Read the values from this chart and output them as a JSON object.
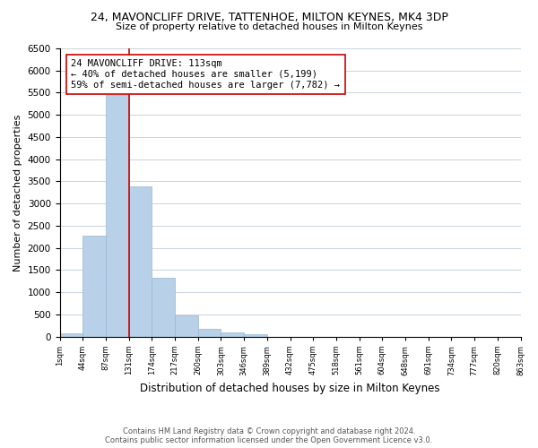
{
  "title_line1": "24, MAVONCLIFF DRIVE, TATTENHOE, MILTON KEYNES, MK4 3DP",
  "title_line2": "Size of property relative to detached houses in Milton Keynes",
  "xlabel": "Distribution of detached houses by size in Milton Keynes",
  "ylabel": "Number of detached properties",
  "bar_color": "#b8d0e8",
  "bar_edge_color": "#9ab8d0",
  "annotation_line_color": "#cc0000",
  "annotation_box_edge_color": "#cc0000",
  "bin_labels": [
    "1sqm",
    "44sqm",
    "87sqm",
    "131sqm",
    "174sqm",
    "217sqm",
    "260sqm",
    "303sqm",
    "346sqm",
    "389sqm",
    "432sqm",
    "475sqm",
    "518sqm",
    "561sqm",
    "604sqm",
    "648sqm",
    "691sqm",
    "734sqm",
    "777sqm",
    "820sqm",
    "863sqm"
  ],
  "bar_values": [
    75,
    2280,
    5450,
    3390,
    1320,
    480,
    180,
    90,
    60,
    0,
    0,
    0,
    0,
    0,
    0,
    0,
    0,
    0,
    0,
    0
  ],
  "ylim": [
    0,
    6500
  ],
  "yticks": [
    0,
    500,
    1000,
    1500,
    2000,
    2500,
    3000,
    3500,
    4000,
    4500,
    5000,
    5500,
    6000,
    6500
  ],
  "annotation_text_line1": "24 MAVONCLIFF DRIVE: 113sqm",
  "annotation_text_line2": "← 40% of detached houses are smaller (5,199)",
  "annotation_text_line3": "59% of semi-detached houses are larger (7,782) →",
  "footer_text": "Contains HM Land Registry data © Crown copyright and database right 2024.\nContains public sector information licensed under the Open Government Licence v3.0.",
  "background_color": "#ffffff",
  "grid_color": "#c8d4de"
}
